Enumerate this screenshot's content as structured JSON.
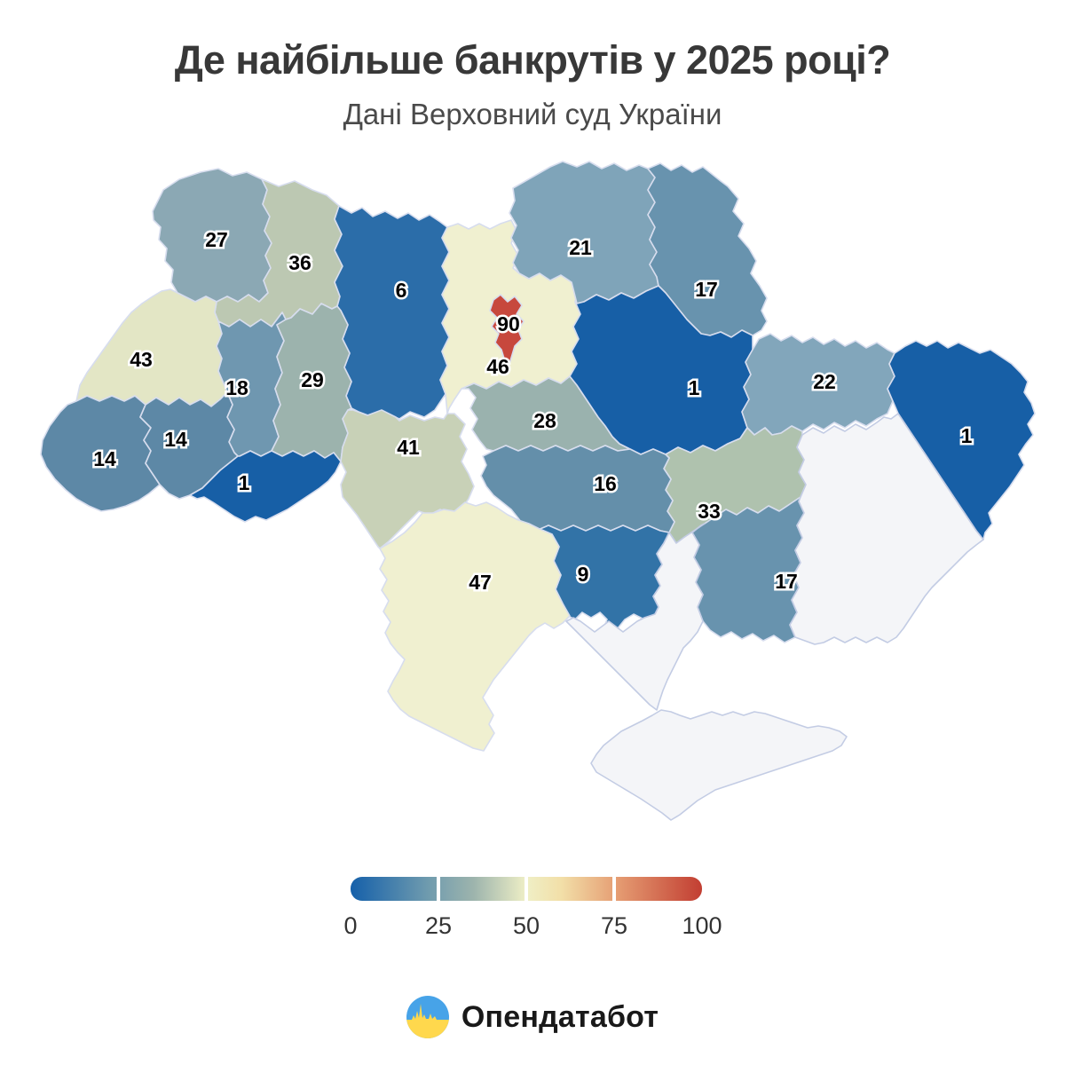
{
  "title": "Де найбільше банкрутів у 2025 році?",
  "subtitle": "Дані Верховний суд України",
  "chart_data": {
    "type": "choropleth",
    "title": "Де найбільше банкрутів у 2025 році?",
    "subtitle": "Дані Верховний суд України",
    "legend": {
      "min": 0,
      "max": 100,
      "ticks": [
        "0",
        "25",
        "50",
        "75",
        "100"
      ],
      "gradient": [
        "#1560AA",
        "#6F9BAE",
        "#9DB4AD",
        "#EFEFC6",
        "#F2DFA8",
        "#E59C72",
        "#C23E32"
      ],
      "no_data_color": "#F4F5F8"
    },
    "regions": [
      {
        "id": "volyn",
        "value": 27,
        "color": "#8BA8B4"
      },
      {
        "id": "rivne",
        "value": 36,
        "color": "#BCC8B2"
      },
      {
        "id": "zhytomyr",
        "value": 6,
        "color": "#2B6DA9"
      },
      {
        "id": "kyiv-oblast",
        "value": 46,
        "color": "#F0F0D0"
      },
      {
        "id": "chernihiv",
        "value": 21,
        "color": "#7FA4B9"
      },
      {
        "id": "sumy",
        "value": 17,
        "color": "#6893AE"
      },
      {
        "id": "lviv",
        "value": 43,
        "color": "#E3E6C5"
      },
      {
        "id": "ternopil",
        "value": 18,
        "color": "#6F97B0"
      },
      {
        "id": "khmelnytskyi",
        "value": 29,
        "color": "#9CB3AD"
      },
      {
        "id": "zakarpattia",
        "value": 14,
        "color": "#5D88A6"
      },
      {
        "id": "ivano-frankivsk",
        "value": 14,
        "color": "#5D88A6"
      },
      {
        "id": "chernivtsi",
        "value": 1,
        "color": "#175FA6"
      },
      {
        "id": "vinnytsia",
        "value": 41,
        "color": "#C8D1B7"
      },
      {
        "id": "cherkasy",
        "value": 28,
        "color": "#9AB2AE"
      },
      {
        "id": "poltava",
        "value": 1,
        "color": "#175FA6"
      },
      {
        "id": "kharkiv",
        "value": 22,
        "color": "#82A6BB"
      },
      {
        "id": "luhansk",
        "value": 1,
        "color": "#175FA6"
      },
      {
        "id": "dnipropetrovsk",
        "value": 33,
        "color": "#AFC2AE"
      },
      {
        "id": "kirovohrad",
        "value": 16,
        "color": "#648FAA"
      },
      {
        "id": "mykolaiv",
        "value": 9,
        "color": "#3273A7"
      },
      {
        "id": "odesa",
        "value": 47,
        "color": "#F0F0D0"
      },
      {
        "id": "zaporizhzhia",
        "value": 17,
        "color": "#6893AE"
      },
      {
        "id": "kyiv-city",
        "value": 90,
        "color": "#C7483D"
      },
      {
        "id": "donetsk",
        "value": null,
        "color": "#F4F5F8"
      },
      {
        "id": "kherson",
        "value": null,
        "color": "#F4F5F8"
      },
      {
        "id": "crimea",
        "value": null,
        "color": "#F4F5F8"
      }
    ]
  },
  "footer": {
    "logo_text": "Опендатабот",
    "logo_icon": "opendatabot-flag-waveform-icon",
    "logo_colors": {
      "blue": "#47A3E8",
      "yellow": "#FFD84D"
    }
  }
}
